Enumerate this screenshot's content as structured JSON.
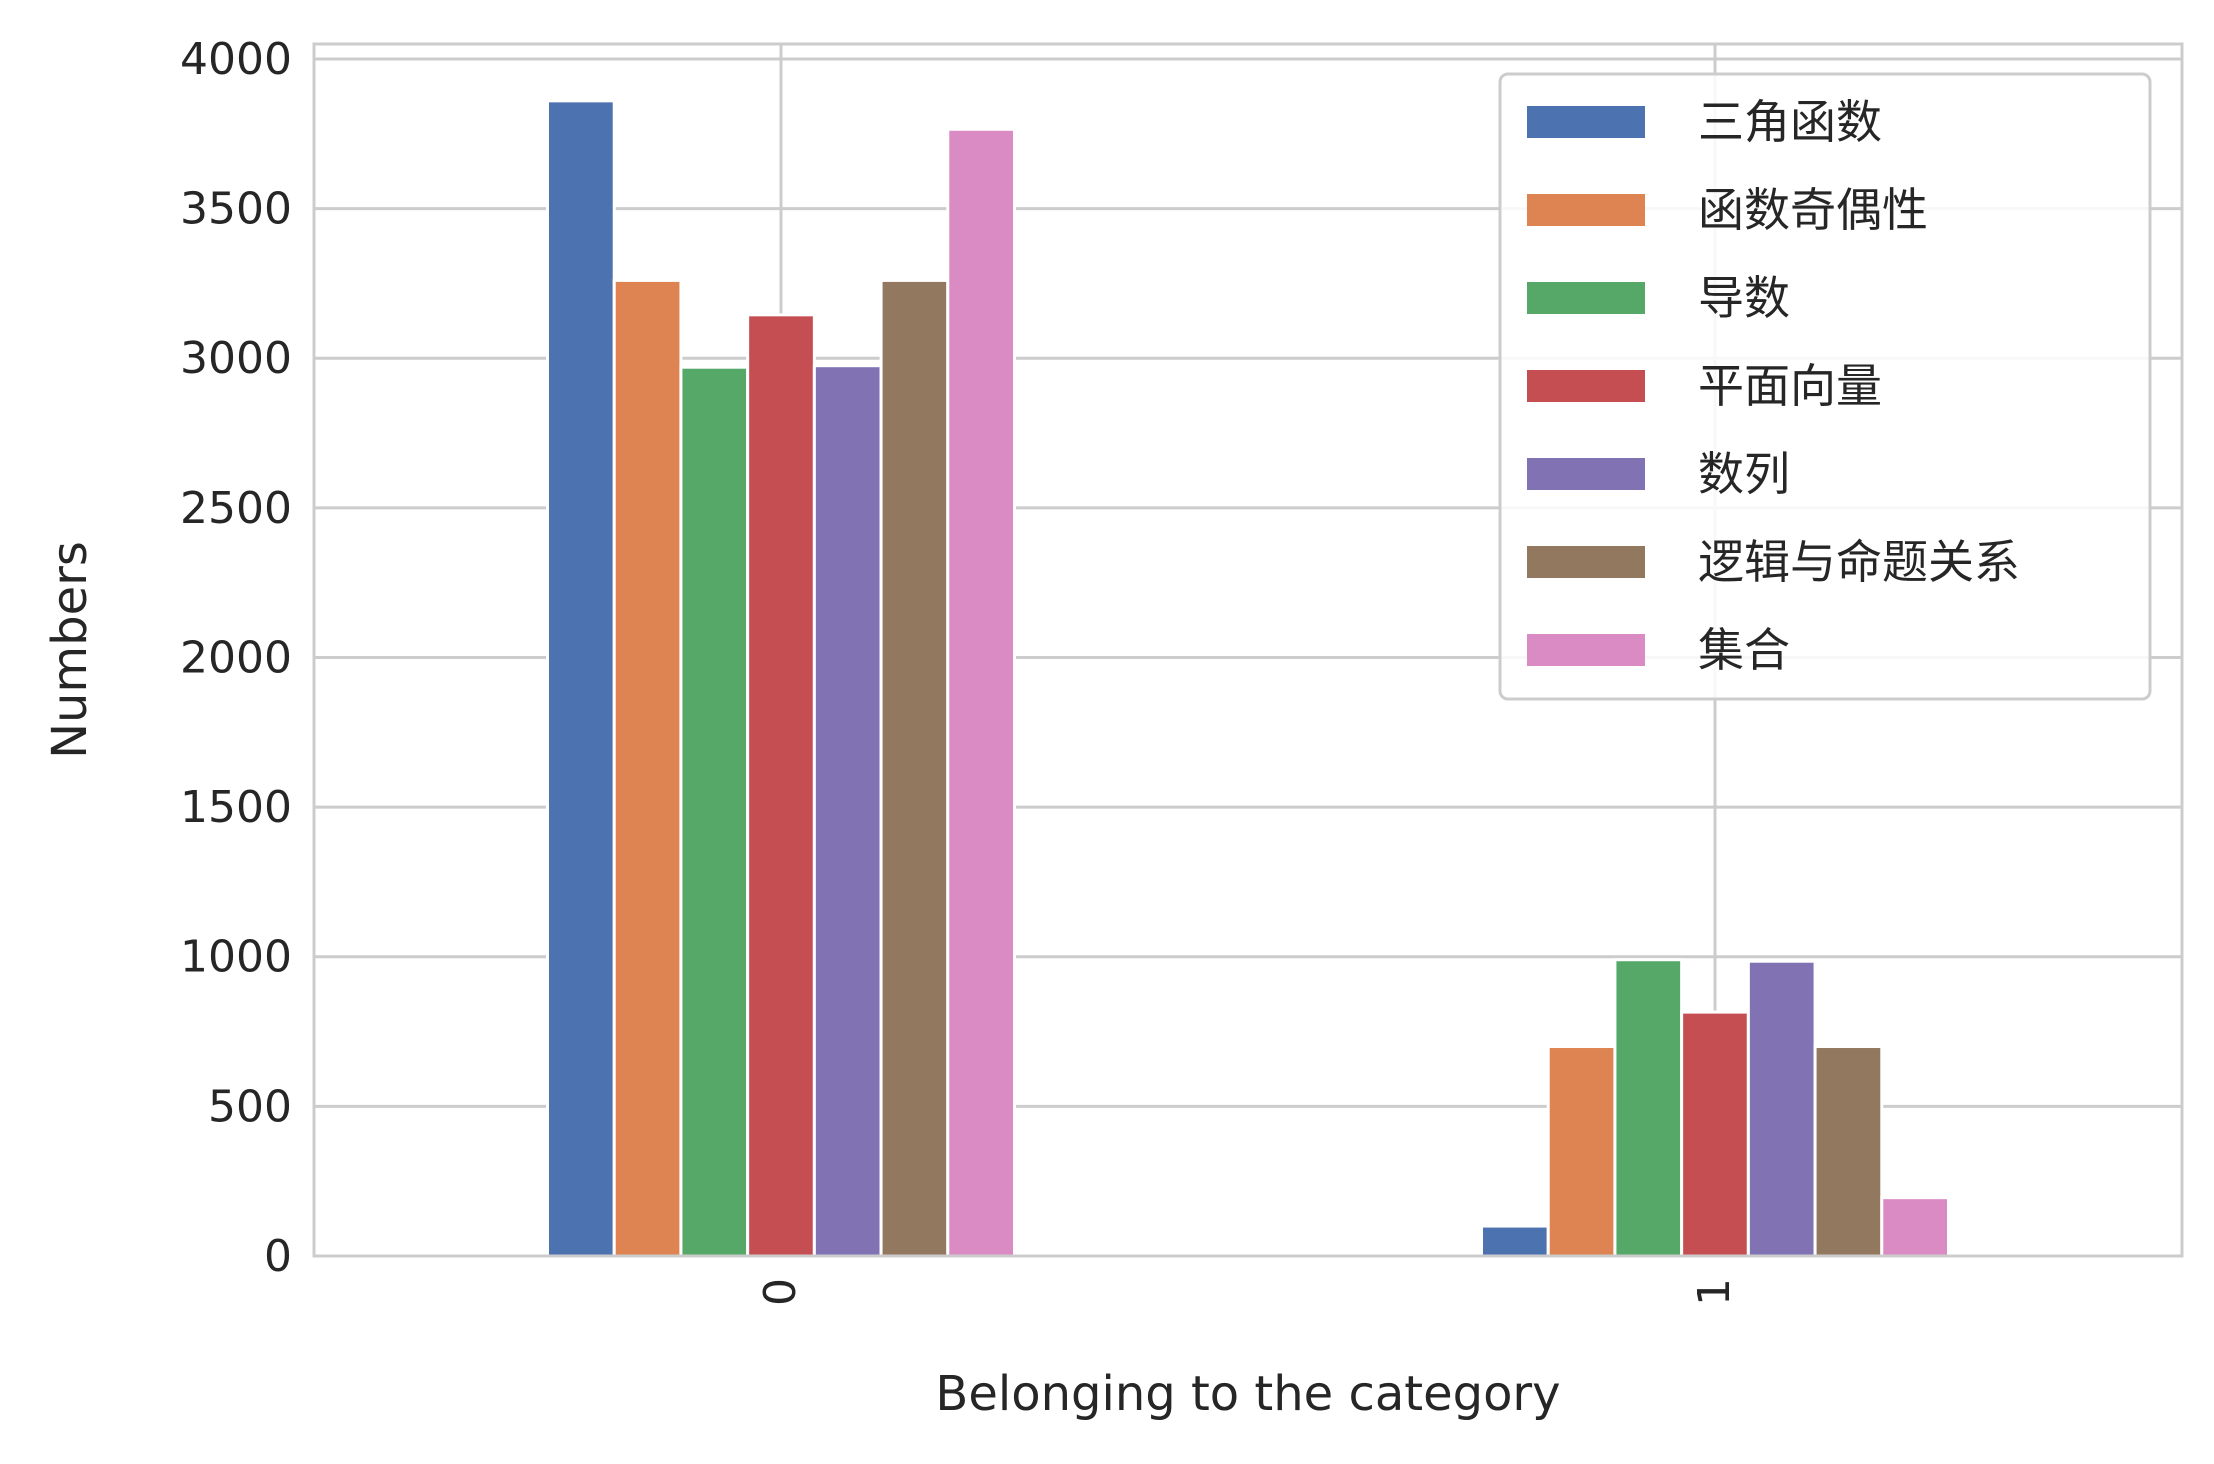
{
  "chart_data": {
    "type": "bar",
    "title": "",
    "xlabel": "Belonging to the category",
    "ylabel": "Numbers",
    "categories": [
      "0",
      "1"
    ],
    "ylim": [
      0,
      4050
    ],
    "yticks": [
      0,
      500,
      1000,
      1500,
      2000,
      2500,
      3000,
      3500,
      4000
    ],
    "ytick_labels": [
      "0",
      "500",
      "1000",
      "1500",
      "2000",
      "2500",
      "3000",
      "3500",
      "4000"
    ],
    "xtick_rotation": "vertical",
    "grid": true,
    "legend_position": "top-right",
    "series": [
      {
        "name": "三角函数",
        "color": "#4c72b0",
        "values": [
          3860,
          100
        ]
      },
      {
        "name": "函数奇偶性",
        "color": "#dd8452",
        "values": [
          3260,
          700
        ]
      },
      {
        "name": "导数",
        "color": "#55a868",
        "values": [
          2970,
          990
        ]
      },
      {
        "name": "平面向量",
        "color": "#c44e52",
        "values": [
          3145,
          815
        ]
      },
      {
        "name": "数列",
        "color": "#8172b3",
        "values": [
          2975,
          985
        ]
      },
      {
        "name": "逻辑与命题关系",
        "color": "#937860",
        "values": [
          3260,
          700
        ]
      },
      {
        "name": "集合",
        "color": "#da8bc3",
        "values": [
          3765,
          195
        ]
      }
    ]
  }
}
